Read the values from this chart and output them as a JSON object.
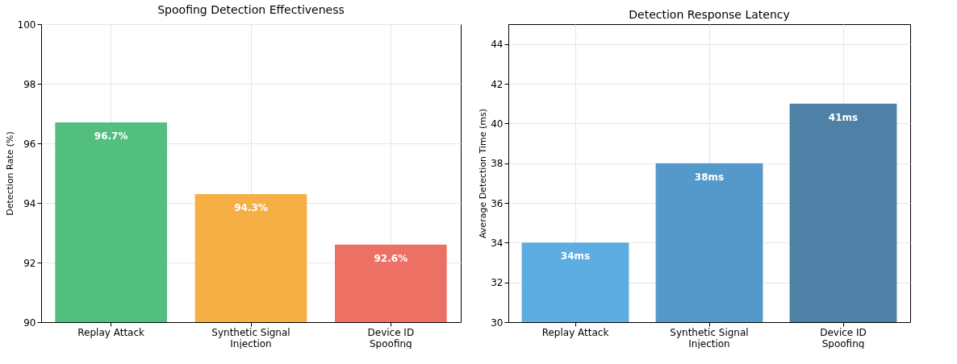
{
  "chart_data": [
    {
      "type": "bar",
      "title": "Spoofing Detection Effectiveness",
      "ylabel": "Detection Rate (%)",
      "categories": [
        "Replay Attack",
        "Synthetic Signal Injection",
        "Device ID Spoofing"
      ],
      "values": [
        96.7,
        94.3,
        92.6
      ],
      "colors": [
        "#52bf7f",
        "#f5af45",
        "#ec7063"
      ],
      "value_labels": [
        "96.7%",
        "94.3%",
        "92.6%"
      ],
      "ylim": [
        90,
        100
      ],
      "yticks": [
        90,
        92,
        94,
        96,
        98,
        100
      ],
      "grid": true
    },
    {
      "type": "bar",
      "title": "Detection Response Latency",
      "ylabel": "Average Detection Time (ms)",
      "categories": [
        "Replay Attack",
        "Synthetic Signal Injection",
        "Device ID Spoofing"
      ],
      "values": [
        34,
        38,
        41
      ],
      "colors": [
        "#5dade2",
        "#5499c9",
        "#4f81a6"
      ],
      "value_labels": [
        "34ms",
        "38ms",
        "41ms"
      ],
      "ylim": [
        30,
        45
      ],
      "yticks": [
        30,
        32,
        34,
        36,
        38,
        40,
        42,
        44
      ],
      "grid": true
    }
  ]
}
